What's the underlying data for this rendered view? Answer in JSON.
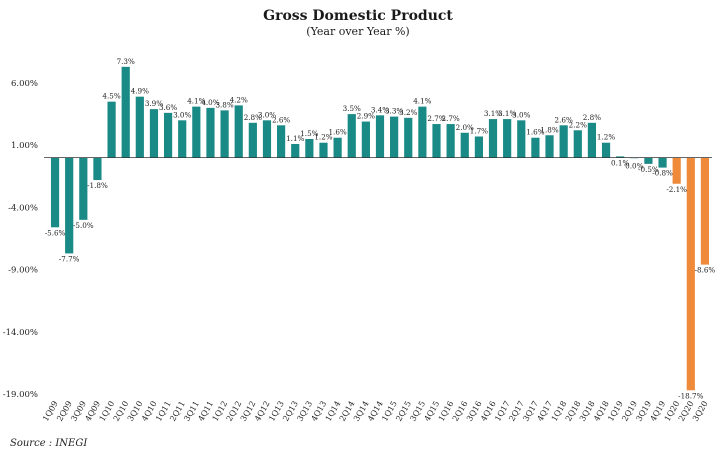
{
  "chart_data": {
    "type": "bar",
    "title": "Gross Domestic Product",
    "subtitle": "(Year over Year %)",
    "xlabel": "",
    "ylabel": "",
    "ylim": [
      -19,
      6
    ],
    "yticks": [
      6,
      1,
      -4,
      -9,
      -14,
      -19
    ],
    "ytick_labels": [
      "6.00%",
      "1.00%",
      "-4.00%",
      "-9.00%",
      "-14.00%",
      "-19.00%"
    ],
    "grid": false,
    "legend": "none",
    "categories": [
      "1Q09",
      "2Q09",
      "3Q09",
      "4Q09",
      "1Q10",
      "2Q10",
      "3Q10",
      "4Q10",
      "1Q11",
      "2Q11",
      "3Q11",
      "4Q11",
      "1Q12",
      "2Q12",
      "3Q12",
      "4Q12",
      "1Q13",
      "2Q13",
      "3Q13",
      "4Q13",
      "1Q14",
      "2Q14",
      "3Q14",
      "4Q14",
      "1Q15",
      "2Q15",
      "3Q15",
      "4Q15",
      "1Q16",
      "2Q16",
      "3Q16",
      "4Q16",
      "1Q17",
      "2Q17",
      "3Q17",
      "4Q17",
      "1Q18",
      "2Q18",
      "3Q18",
      "4Q18",
      "1Q19",
      "2Q19",
      "3Q19",
      "4Q19",
      "1Q20",
      "2Q20",
      "3Q20"
    ],
    "values": [
      -5.6,
      -7.7,
      -5.0,
      -1.8,
      4.5,
      7.3,
      4.9,
      3.9,
      3.6,
      3.0,
      4.1,
      4.0,
      3.8,
      4.2,
      2.8,
      3.0,
      2.6,
      1.1,
      1.5,
      1.2,
      1.6,
      3.5,
      2.9,
      3.4,
      3.3,
      3.2,
      4.1,
      2.7,
      2.7,
      2.0,
      1.7,
      3.1,
      3.1,
      3.0,
      1.6,
      1.8,
      2.6,
      2.2,
      2.8,
      1.2,
      0.1,
      0.0,
      -0.5,
      -0.8,
      -2.1,
      -18.7,
      -8.6
    ],
    "data_labels": [
      "-5.6%",
      "-7.7%",
      "-5.0%",
      "-1.8%",
      "4.5%",
      "7.3%",
      "4.9%",
      "3.9%",
      "3.6%",
      "3.0%",
      "4.1%",
      "4.0%",
      "3.8%",
      "4.2%",
      "2.8%",
      "3.0%",
      "2.6%",
      "1.1%",
      "1.5%",
      "1.2%",
      "1.6%",
      "3.5%",
      "2.9%",
      "3.4%",
      "3.3%",
      "3.2%",
      "4.1%",
      "2.7%",
      "2.7%",
      "2.0%",
      "1.7%",
      "3.1%",
      "3.1%",
      "3.0%",
      "1.6%",
      "1.8%",
      "2.6%",
      "2.2%",
      "2.8%",
      "1.2%",
      "0.1%",
      "0.0%",
      "-0.5%",
      "-0.8%",
      "-2.1%",
      "-18.7%",
      "-8.6%"
    ],
    "highlight_from_index": 44,
    "colors": {
      "default": "#1a8a87",
      "highlight": "#ee8a3a",
      "axis": "#333333"
    }
  },
  "source": "Source :  INEGI"
}
